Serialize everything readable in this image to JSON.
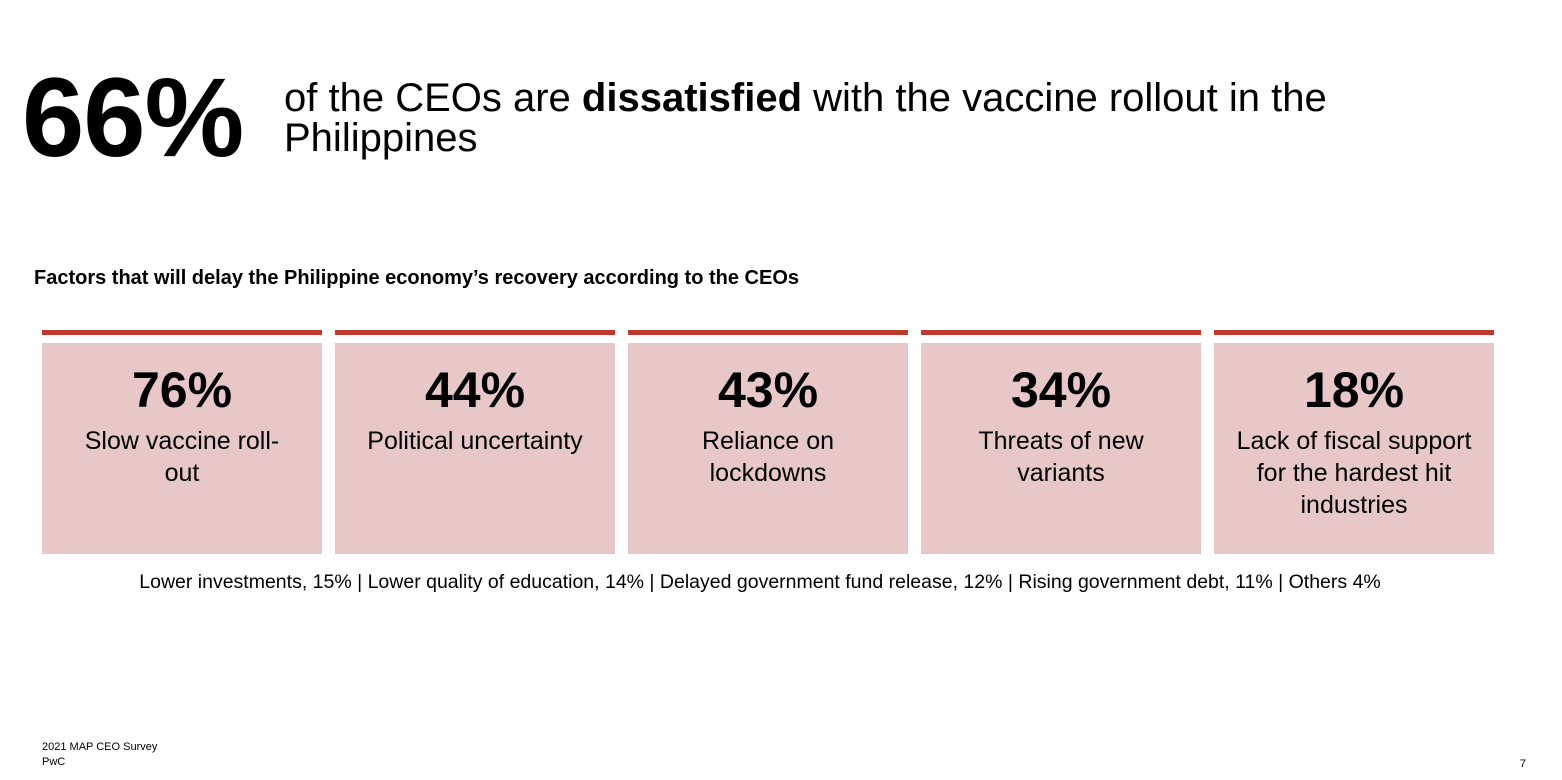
{
  "headline": {
    "stat": "66%",
    "text_before": "of the CEOs are ",
    "text_bold": "dissatisfied",
    "text_after": " with the vaccine rollout in the Philippines"
  },
  "section_title": "Factors that will delay the Philippine economy’s recovery according to the CEOs",
  "colors": {
    "card_background": "#e8c7c8",
    "card_bar": "#c0392f"
  },
  "chart_data": {
    "type": "table",
    "categories": [
      "Slow vaccine roll-out",
      "Political uncertainty",
      "Reliance on lockdowns",
      "Threats of new variants",
      "Lack of fiscal support for the hardest hit industries"
    ],
    "values": [
      76,
      44,
      43,
      34,
      18
    ],
    "value_labels": [
      "76%",
      "44%",
      "43%",
      "34%",
      "18%"
    ],
    "display_labels": [
      "Slow vaccine roll-\nout",
      "Political uncertainty",
      "Reliance on\nlockdowns",
      "Threats of new\nvariants",
      "Lack of fiscal support\nfor the hardest hit\nindustries"
    ],
    "title": "Factors that will delay the Philippine economy’s recovery according to the CEOs",
    "other_factors": "Lower investments, 15% | Lower quality of education, 14% | Delayed government fund release, 12% | Rising government debt, 11% | Others 4%"
  },
  "footer": {
    "line1": "2021 MAP CEO Survey",
    "line2": "PwC",
    "page_number": "7"
  }
}
